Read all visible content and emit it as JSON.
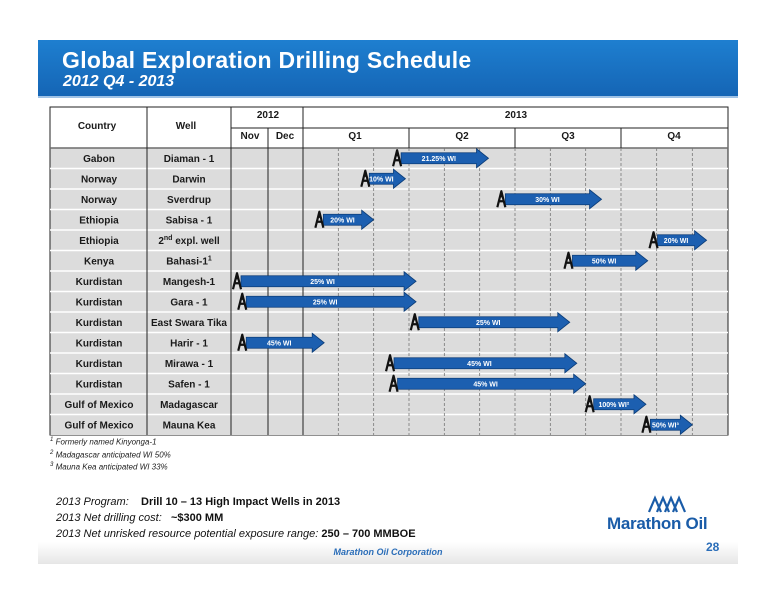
{
  "header": {
    "title": "Global Exploration Drilling Schedule",
    "subtitle": "2012 Q4 - 2013"
  },
  "table": {
    "col_country": "Country",
    "col_well": "Well",
    "year_2012": "2012",
    "year_2013": "2013",
    "month_nov": "Nov",
    "month_dec": "Dec",
    "quarters": [
      "Q1",
      "Q2",
      "Q3",
      "Q4"
    ]
  },
  "chart_data": {
    "type": "gantt",
    "time_unit": "months_from_2012_11_01",
    "tasks": [
      {
        "country": "Gabon",
        "well": "Diaman - 1",
        "start": 4.55,
        "end": 7.25,
        "label": "21.25% WI"
      },
      {
        "country": "Norway",
        "well": "Darwin",
        "start": 3.65,
        "end": 4.9,
        "label": "10% WI"
      },
      {
        "country": "Norway",
        "well": "Sverdrup",
        "start": 7.5,
        "end": 10.45,
        "label": "30% WI"
      },
      {
        "country": "Ethiopia",
        "well": "Sabisa - 1",
        "start": 2.35,
        "end": 4.0,
        "label": "20% WI"
      },
      {
        "country": "Ethiopia",
        "well": "2nd expl. well",
        "well_sup": "nd",
        "start": 11.8,
        "end": 13.4,
        "label": "20% WI"
      },
      {
        "country": "Kenya",
        "well": "Bahasi-1",
        "well_sup": "1",
        "start": 9.4,
        "end": 11.75,
        "label": "50% WI"
      },
      {
        "country": "Kurdistan",
        "well": "Mangesh-1",
        "start": 0.0,
        "end": 5.2,
        "label": "25% WI"
      },
      {
        "country": "Kurdistan",
        "well": "Gara - 1",
        "start": 0.15,
        "end": 5.2,
        "label": "25% WI"
      },
      {
        "country": "Kurdistan",
        "well": "East Swara Tika",
        "start": 5.05,
        "end": 9.55,
        "label": "25% WI"
      },
      {
        "country": "Kurdistan",
        "well": "Harir - 1",
        "start": 0.15,
        "end": 2.6,
        "label": "45% WI"
      },
      {
        "country": "Kurdistan",
        "well": "Mirawa - 1",
        "start": 4.35,
        "end": 9.75,
        "label": "45% WI"
      },
      {
        "country": "Kurdistan",
        "well": "Safen - 1",
        "start": 4.45,
        "end": 10.0,
        "label": "45% WI"
      },
      {
        "country": "Gulf of Mexico",
        "well": "Madagascar",
        "start": 10.0,
        "end": 11.7,
        "label": "100% WI²"
      },
      {
        "country": "Gulf of Mexico",
        "well": "Mauna Kea",
        "start": 11.6,
        "end": 13.0,
        "label": "50% WI³"
      }
    ]
  },
  "footnotes": {
    "n1": "Formerly named Kinyonga-1",
    "n2": "Madagascar anticipated WI 50%",
    "n3": "Mauna Kea anticipated WI 33%"
  },
  "program": {
    "line1_label": "2013 Program:",
    "line1_value": "Drill 10 – 13 High Impact Wells in 2013",
    "line2_label": "2013 Net drilling cost:",
    "line2_value": "~$300 MM",
    "line3_label": "2013 Net unrisked resource potential exposure range:",
    "line3_value": "250 – 700  MMBOE"
  },
  "footer": {
    "company": "Marathon Oil Corporation",
    "page": "28",
    "logo_text": "Marathon Oil"
  },
  "colors": {
    "banner": "#1a72c4",
    "arrow": "#1c5fb0",
    "arrow_edge": "#0c3d78",
    "row_bg": "#dcdcdc"
  }
}
